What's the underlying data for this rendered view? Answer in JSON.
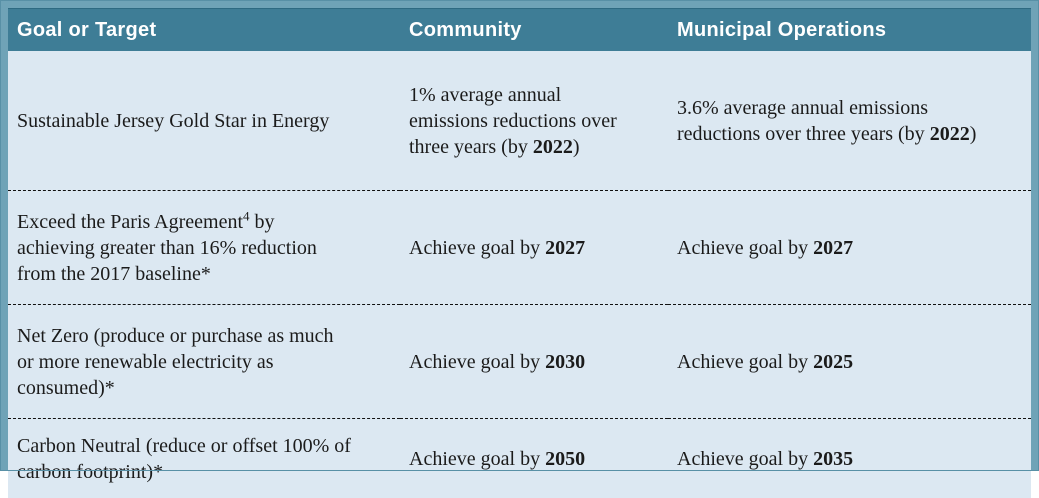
{
  "colors": {
    "outer_border": "#6fa3b7",
    "header_bg": "#3e7d96",
    "header_text": "#ffffff",
    "body_bg": "#dce8f2",
    "body_text": "#1b1b1b",
    "divider": "#111111"
  },
  "table": {
    "headers": {
      "goal": "Goal or Target",
      "community": "Community",
      "municipal": "Municipal Operations"
    },
    "rows": [
      {
        "goal": {
          "pre": "Sustainable Jersey Gold Star in Energy"
        },
        "community": {
          "pre": "1% average annual emissions reductions over three years (by ",
          "bold": "2022",
          "post": ")"
        },
        "municipal": {
          "pre": "3.6% average annual emissions reductions over three years (by ",
          "bold": "2022",
          "post": ")"
        }
      },
      {
        "goal": {
          "pre": "Exceed the Paris Agreement",
          "sup": "4",
          "post": " by achieving greater than 16% reduction from the 2017 baseline*"
        },
        "community": {
          "pre": "Achieve goal by ",
          "bold": "2027"
        },
        "municipal": {
          "pre": "Achieve goal by ",
          "bold": "2027"
        }
      },
      {
        "goal": {
          "pre": "Net Zero (produce or purchase as much or more renewable electricity as consumed)*"
        },
        "community": {
          "pre": "Achieve goal by ",
          "bold": "2030"
        },
        "municipal": {
          "pre": "Achieve goal by ",
          "bold": "2025"
        }
      },
      {
        "goal": {
          "pre": "Carbon Neutral (reduce or offset 100% of carbon footprint)*"
        },
        "community": {
          "pre": "Achieve goal by ",
          "bold": "2050"
        },
        "municipal": {
          "pre": "Achieve goal by ",
          "bold": "2035"
        }
      }
    ]
  }
}
